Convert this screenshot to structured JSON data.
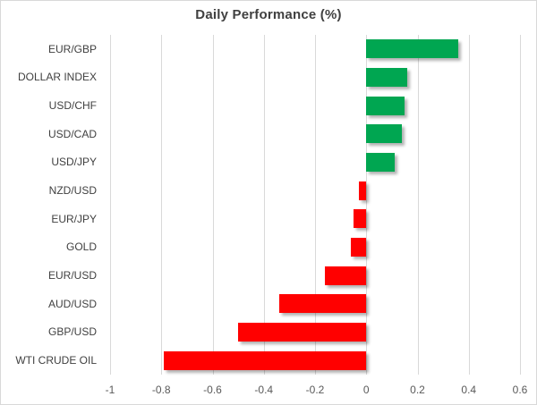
{
  "title": "Daily Performance (%)",
  "colors": {
    "positive": "#00a651",
    "negative": "#ff0000",
    "gridline": "#d9d9d9",
    "border": "#d9d9d9",
    "title_text": "#404040",
    "label_text": "#404040",
    "axis_text": "#595959",
    "background": "#ffffff"
  },
  "chart_data": {
    "type": "bar",
    "orientation": "horizontal",
    "title": "Daily Performance (%)",
    "categories": [
      "EUR/GBP",
      "DOLLAR INDEX",
      "USD/CHF",
      "USD/CAD",
      "USD/JPY",
      "NZD/USD",
      "EUR/JPY",
      "GOLD",
      "EUR/USD",
      "AUD/USD",
      "GBP/USD",
      "WTI CRUDE OIL"
    ],
    "values": [
      0.36,
      0.16,
      0.15,
      0.14,
      0.11,
      -0.03,
      -0.05,
      -0.06,
      -0.16,
      -0.34,
      -0.5,
      -0.79
    ],
    "xlabel": "",
    "ylabel": "",
    "xlim": [
      -1,
      0.6
    ],
    "xticks": [
      -1,
      -0.8,
      -0.6,
      -0.4,
      -0.2,
      0,
      0.2,
      0.4,
      0.6
    ],
    "xtick_labels": [
      "-1",
      "-0.8",
      "-0.6",
      "-0.4",
      "-0.2",
      "0",
      "0.2",
      "0.4",
      "0.6"
    ],
    "grid": true,
    "legend": false,
    "bar_colors_rule": "green if positive, red if negative"
  }
}
